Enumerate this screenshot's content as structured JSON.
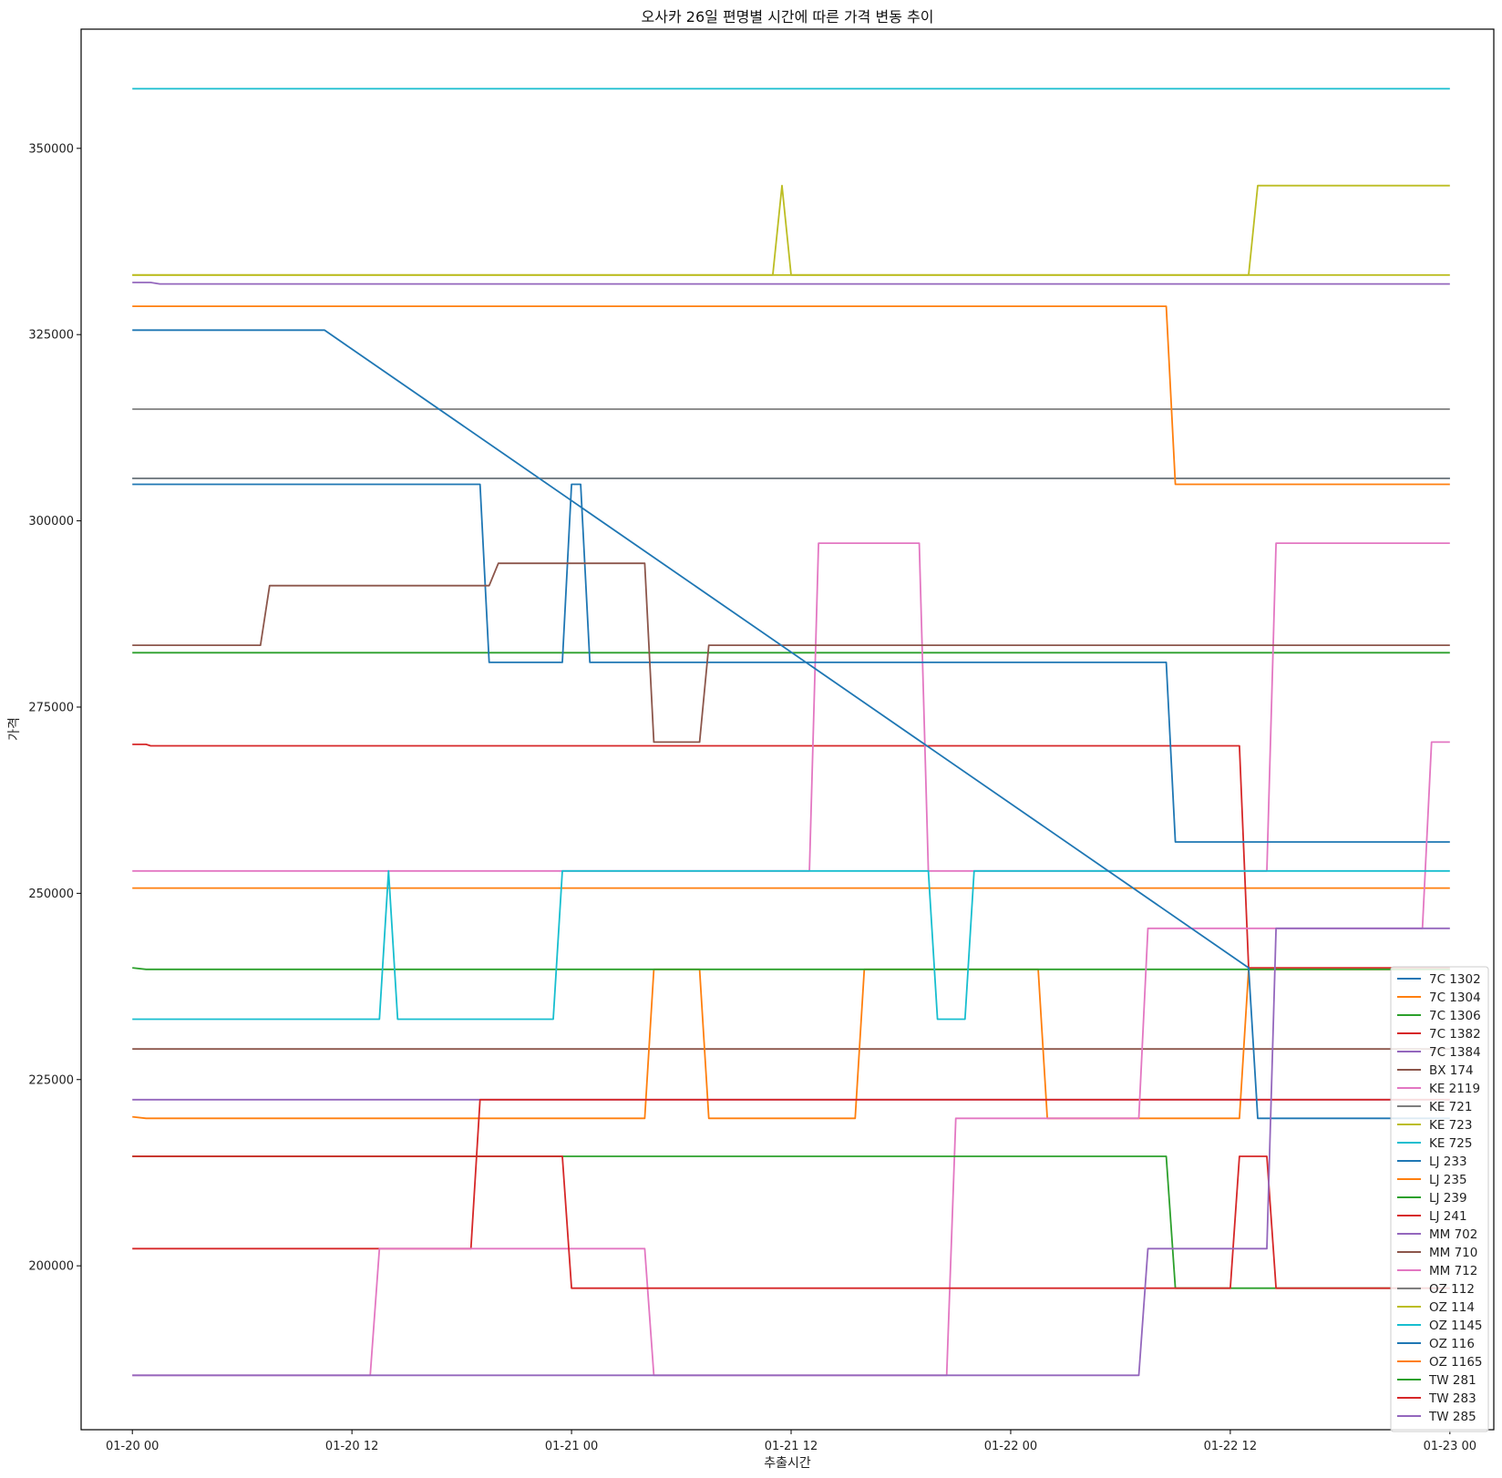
{
  "chart_data": {
    "type": "line",
    "title": "오사카 26일 편명별 시간에 따른 가격 변동 추이",
    "xlabel": "추출시간",
    "ylabel": "가격",
    "xlim": [
      "2024-01-19T21:12",
      "2024-01-23T02:24"
    ],
    "ylim": [
      178000,
      366000
    ],
    "x_ticks": [
      {
        "t": "2024-01-20T00:00",
        "label": "01-20 00"
      },
      {
        "t": "2024-01-20T12:00",
        "label": "01-20 12"
      },
      {
        "t": "2024-01-21T00:00",
        "label": "01-21 00"
      },
      {
        "t": "2024-01-21T12:00",
        "label": "01-21 12"
      },
      {
        "t": "2024-01-22T00:00",
        "label": "01-22 00"
      },
      {
        "t": "2024-01-22T12:00",
        "label": "01-22 12"
      },
      {
        "t": "2024-01-23T00:00",
        "label": "01-23 00"
      }
    ],
    "y_ticks": [
      {
        "v": 200000,
        "label": "200000"
      },
      {
        "v": 225000,
        "label": "225000"
      },
      {
        "v": 250000,
        "label": "250000"
      },
      {
        "v": 275000,
        "label": "275000"
      },
      {
        "v": 300000,
        "label": "300000"
      },
      {
        "v": 325000,
        "label": "325000"
      },
      {
        "v": 350000,
        "label": "350000"
      }
    ],
    "grid": false,
    "legend_position": "lower-right",
    "series": [
      {
        "name": "7C 1302",
        "color": "#1f77b4",
        "points": [
          [
            "2024-01-20T00:00",
            305700
          ],
          [
            "2024-01-23T00:00",
            305700
          ]
        ]
      },
      {
        "name": "7C 1304",
        "color": "#ff7f0e",
        "points": [
          [
            "2024-01-20T00:00",
            250700
          ],
          [
            "2024-01-23T00:00",
            250700
          ]
        ]
      },
      {
        "name": "7C 1306",
        "color": "#2ca02c",
        "points": [
          [
            "2024-01-20T00:00",
            282300
          ],
          [
            "2024-01-23T00:00",
            282300
          ]
        ]
      },
      {
        "name": "7C 1382",
        "color": "#d62728",
        "points": [
          [
            "2024-01-20T00:00",
            270000
          ],
          [
            "2024-01-20T00:45",
            270000
          ],
          [
            "2024-01-20T01:00",
            269800
          ],
          [
            "2024-01-22T12:30",
            269800
          ],
          [
            "2024-01-22T13:00",
            240000
          ],
          [
            "2024-01-23T00:00",
            240000
          ]
        ]
      },
      {
        "name": "7C 1384",
        "color": "#9467bd",
        "points": [
          [
            "2024-01-20T00:00",
            222300
          ],
          [
            "2024-01-23T00:00",
            222300
          ]
        ]
      },
      {
        "name": "BX 174",
        "color": "#8c564b",
        "points": [
          [
            "2024-01-20T00:00",
            229100
          ],
          [
            "2024-01-23T00:00",
            229100
          ]
        ]
      },
      {
        "name": "KE 2119",
        "color": "#e377c2",
        "points": [
          [
            "2024-01-20T00:00",
            253000
          ],
          [
            "2024-01-21T13:00",
            253000
          ],
          [
            "2024-01-21T13:30",
            297000
          ],
          [
            "2024-01-21T19:00",
            297000
          ],
          [
            "2024-01-21T19:30",
            253000
          ],
          [
            "2024-01-22T14:00",
            253000
          ],
          [
            "2024-01-22T14:30",
            297000
          ],
          [
            "2024-01-23T00:00",
            297000
          ]
        ]
      },
      {
        "name": "KE 721",
        "color": "#7f7f7f",
        "points": [
          [
            "2024-01-20T00:00",
            315000
          ],
          [
            "2024-01-23T00:00",
            315000
          ]
        ]
      },
      {
        "name": "KE 723",
        "color": "#bcbd22",
        "points": [
          [
            "2024-01-20T00:00",
            333000
          ],
          [
            "2024-01-21T11:00",
            333000
          ],
          [
            "2024-01-21T11:30",
            345000
          ],
          [
            "2024-01-21T12:00",
            333000
          ],
          [
            "2024-01-22T13:00",
            333000
          ],
          [
            "2024-01-22T13:30",
            345000
          ],
          [
            "2024-01-23T00:00",
            345000
          ]
        ]
      },
      {
        "name": "KE 725",
        "color": "#17becf",
        "points": [
          [
            "2024-01-20T00:00",
            358000
          ],
          [
            "2024-01-23T00:00",
            358000
          ]
        ]
      },
      {
        "name": "LJ 233",
        "color": "#1f77b4",
        "points": [
          [
            "2024-01-20T00:00",
            304900
          ],
          [
            "2024-01-20T19:00",
            304900
          ],
          [
            "2024-01-20T19:30",
            281000
          ],
          [
            "2024-01-20T23:30",
            281000
          ],
          [
            "2024-01-21T00:00",
            304900
          ],
          [
            "2024-01-21T00:30",
            304900
          ],
          [
            "2024-01-21T01:00",
            281000
          ],
          [
            "2024-01-22T08:30",
            281000
          ],
          [
            "2024-01-22T09:00",
            256900
          ],
          [
            "2024-01-23T00:00",
            256900
          ]
        ]
      },
      {
        "name": "LJ 235",
        "color": "#ff7f0e",
        "points": [
          [
            "2024-01-20T00:00",
            220000
          ],
          [
            "2024-01-20T00:45",
            219800
          ],
          [
            "2024-01-21T04:00",
            219800
          ],
          [
            "2024-01-21T04:30",
            239800
          ],
          [
            "2024-01-21T07:00",
            239800
          ],
          [
            "2024-01-21T07:30",
            219800
          ],
          [
            "2024-01-21T15:30",
            219800
          ],
          [
            "2024-01-21T16:00",
            239800
          ],
          [
            "2024-01-22T01:30",
            239800
          ],
          [
            "2024-01-22T02:00",
            219800
          ],
          [
            "2024-01-22T12:30",
            219800
          ],
          [
            "2024-01-22T13:00",
            239800
          ],
          [
            "2024-01-23T00:00",
            239800
          ]
        ]
      },
      {
        "name": "LJ 239",
        "color": "#2ca02c",
        "points": [
          [
            "2024-01-20T00:00",
            240000
          ],
          [
            "2024-01-20T00:45",
            239800
          ],
          [
            "2024-01-23T00:00",
            239800
          ]
        ]
      },
      {
        "name": "LJ 241",
        "color": "#d62728",
        "points": [
          [
            "2024-01-20T00:00",
            202300
          ],
          [
            "2024-01-20T18:30",
            202300
          ],
          [
            "2024-01-20T19:00",
            222300
          ],
          [
            "2024-01-23T00:00",
            222300
          ]
        ]
      },
      {
        "name": "MM 702",
        "color": "#9467bd",
        "points": [
          [
            "2024-01-20T00:00",
            332000
          ],
          [
            "2024-01-20T01:00",
            332000
          ],
          [
            "2024-01-20T01:30",
            331800
          ],
          [
            "2024-01-23T00:00",
            331800
          ]
        ]
      },
      {
        "name": "MM 710",
        "color": "#8c564b",
        "points": [
          [
            "2024-01-20T00:00",
            283300
          ],
          [
            "2024-01-20T07:00",
            283300
          ],
          [
            "2024-01-20T07:30",
            291300
          ],
          [
            "2024-01-20T19:30",
            291300
          ],
          [
            "2024-01-20T20:00",
            294300
          ],
          [
            "2024-01-21T04:00",
            294300
          ],
          [
            "2024-01-21T04:30",
            270300
          ],
          [
            "2024-01-21T07:00",
            270300
          ],
          [
            "2024-01-21T07:30",
            283300
          ],
          [
            "2024-01-23T00:00",
            283300
          ]
        ]
      },
      {
        "name": "MM 712",
        "color": "#e377c2",
        "points": [
          [
            "2024-01-20T00:00",
            185300
          ],
          [
            "2024-01-20T13:00",
            185300
          ],
          [
            "2024-01-20T13:30",
            202300
          ],
          [
            "2024-01-21T04:00",
            202300
          ],
          [
            "2024-01-21T04:30",
            185300
          ],
          [
            "2024-01-21T20:30",
            185300
          ],
          [
            "2024-01-21T21:00",
            219800
          ],
          [
            "2024-01-22T07:00",
            219800
          ],
          [
            "2024-01-22T07:30",
            245300
          ],
          [
            "2024-01-22T22:30",
            245300
          ],
          [
            "2024-01-22T23:00",
            270300
          ],
          [
            "2024-01-23T00:00",
            270300
          ]
        ]
      },
      {
        "name": "OZ 112",
        "color": "#7f7f7f",
        "points": [
          [
            "2024-01-20T00:00",
            305700
          ],
          [
            "2024-01-23T00:00",
            305700
          ]
        ]
      },
      {
        "name": "OZ 114",
        "color": "#bcbd22",
        "points": [
          [
            "2024-01-20T00:00",
            333000
          ],
          [
            "2024-01-23T00:00",
            333000
          ]
        ]
      },
      {
        "name": "OZ 1145",
        "color": "#17becf",
        "points": [
          [
            "2024-01-20T00:00",
            233100
          ],
          [
            "2024-01-20T13:30",
            233100
          ],
          [
            "2024-01-20T14:00",
            253000
          ],
          [
            "2024-01-20T14:30",
            233100
          ],
          [
            "2024-01-20T23:00",
            233100
          ],
          [
            "2024-01-20T23:30",
            253000
          ],
          [
            "2024-01-21T19:30",
            253000
          ],
          [
            "2024-01-21T20:00",
            233100
          ],
          [
            "2024-01-21T21:30",
            233100
          ],
          [
            "2024-01-21T22:00",
            253000
          ],
          [
            "2024-01-23T00:00",
            253000
          ]
        ]
      },
      {
        "name": "OZ 116",
        "color": "#1f77b4",
        "points": [
          [
            "2024-01-20T00:00",
            325600
          ],
          [
            "2024-01-20T10:00",
            325600
          ],
          [
            "2024-01-20T10:30",
            325600
          ],
          [
            "2024-01-22T13:00",
            240000
          ],
          [
            "2024-01-22T13:30",
            219800
          ],
          [
            "2024-01-23T00:00",
            219800
          ]
        ]
      },
      {
        "name": "OZ 1165",
        "color": "#ff7f0e",
        "points": [
          [
            "2024-01-20T00:00",
            328800
          ],
          [
            "2024-01-22T08:30",
            328800
          ],
          [
            "2024-01-22T09:00",
            304900
          ],
          [
            "2024-01-23T00:00",
            304900
          ]
        ]
      },
      {
        "name": "TW 281",
        "color": "#2ca02c",
        "points": [
          [
            "2024-01-20T00:00",
            214700
          ],
          [
            "2024-01-22T08:30",
            214700
          ],
          [
            "2024-01-22T09:00",
            197000
          ],
          [
            "2024-01-23T00:00",
            197000
          ]
        ]
      },
      {
        "name": "TW 283",
        "color": "#d62728",
        "points": [
          [
            "2024-01-20T00:00",
            214700
          ],
          [
            "2024-01-20T23:30",
            214700
          ],
          [
            "2024-01-21T00:00",
            197000
          ],
          [
            "2024-01-22T12:00",
            197000
          ],
          [
            "2024-01-22T12:30",
            214700
          ],
          [
            "2024-01-22T14:00",
            214700
          ],
          [
            "2024-01-22T14:30",
            197000
          ],
          [
            "2024-01-23T00:00",
            197000
          ]
        ]
      },
      {
        "name": "TW 285",
        "color": "#9467bd",
        "points": [
          [
            "2024-01-20T00:00",
            185300
          ],
          [
            "2024-01-22T07:00",
            185300
          ],
          [
            "2024-01-22T07:30",
            202300
          ],
          [
            "2024-01-22T14:00",
            202300
          ],
          [
            "2024-01-22T14:30",
            245300
          ],
          [
            "2024-01-23T00:00",
            245300
          ]
        ]
      }
    ]
  }
}
